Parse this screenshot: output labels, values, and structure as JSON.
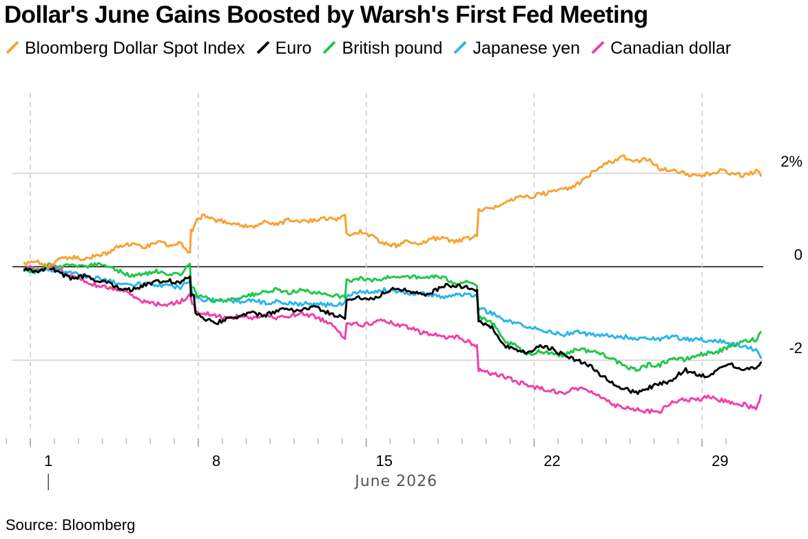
{
  "chart_data": {
    "type": "line",
    "title": "Dollar's June Gains Boosted by Warsh's First Fed Meeting",
    "xlabel": "June 2026",
    "ylabel": "",
    "unit": "%",
    "source": "Source: Bloomberg",
    "ylim": [
      -3.5,
      3.5
    ],
    "yticks": [
      {
        "value": 2,
        "label": "2%"
      },
      {
        "value": 0,
        "label": "0"
      },
      {
        "value": -2,
        "label": "-2"
      }
    ],
    "xlim": [
      -0.5,
      30.8
    ],
    "xticks": [
      {
        "value": 1,
        "label": "1"
      },
      {
        "value": 8,
        "label": "8"
      },
      {
        "value": 15,
        "label": "15"
      },
      {
        "value": 22,
        "label": "22"
      },
      {
        "value": 29,
        "label": "29"
      }
    ],
    "grid": true,
    "legend_position": "top-left",
    "series": [
      {
        "name": "Bloomberg Dollar Spot Index",
        "color": "#F7A232",
        "x": [
          0,
          0.5,
          1,
          1.5,
          2,
          2.5,
          3,
          3.5,
          4,
          4.5,
          5,
          5.5,
          6,
          6.5,
          6.9,
          7,
          7.2,
          7.5,
          8,
          8.5,
          9,
          9.5,
          10,
          10.5,
          11,
          11.5,
          12,
          12.5,
          13,
          13.3,
          13.5,
          14,
          14.5,
          15,
          15.5,
          16,
          16.5,
          17,
          17.5,
          18,
          18.5,
          18.8,
          19,
          19.5,
          20,
          20.5,
          21,
          21.5,
          22,
          22.5,
          23,
          23.5,
          24,
          24.5,
          25,
          25.5,
          26,
          26.5,
          27,
          27.5,
          28,
          28.5,
          29,
          29.5,
          30,
          30.5,
          30.7
        ],
        "y": [
          0.05,
          0.1,
          0.0,
          0.2,
          0.2,
          0.15,
          0.25,
          0.3,
          0.45,
          0.5,
          0.4,
          0.55,
          0.45,
          0.5,
          0.3,
          0.8,
          1.0,
          1.1,
          1.0,
          0.95,
          0.9,
          0.85,
          0.95,
          0.9,
          1.0,
          0.95,
          1.0,
          1.05,
          1.0,
          1.1,
          0.7,
          0.75,
          0.65,
          0.5,
          0.45,
          0.55,
          0.5,
          0.6,
          0.6,
          0.55,
          0.6,
          0.65,
          1.2,
          1.25,
          1.35,
          1.5,
          1.5,
          1.55,
          1.6,
          1.65,
          1.75,
          1.95,
          2.15,
          2.25,
          2.35,
          2.25,
          2.3,
          2.1,
          2.05,
          2.0,
          1.95,
          2.0,
          2.05,
          2.0,
          1.95,
          2.05,
          1.95
        ]
      },
      {
        "name": "Euro",
        "color": "#000000",
        "x": [
          0,
          0.5,
          1,
          1.5,
          2,
          2.5,
          3,
          3.5,
          4,
          4.5,
          5,
          5.5,
          6,
          6.5,
          6.9,
          7,
          7.2,
          7.5,
          8,
          8.5,
          9,
          9.5,
          10,
          10.5,
          11,
          11.5,
          12,
          12.5,
          13,
          13.3,
          13.5,
          14,
          14.5,
          15,
          15.5,
          16,
          16.5,
          17,
          17.5,
          18,
          18.5,
          18.8,
          19,
          19.5,
          20,
          20.5,
          21,
          21.5,
          22,
          22.5,
          23,
          23.5,
          24,
          24.5,
          25,
          25.5,
          26,
          26.5,
          27,
          27.5,
          28,
          28.5,
          29,
          29.5,
          30,
          30.5,
          30.7
        ],
        "y": [
          -0.05,
          -0.1,
          0.0,
          -0.15,
          -0.25,
          -0.2,
          -0.3,
          -0.35,
          -0.45,
          -0.5,
          -0.4,
          -0.3,
          -0.3,
          -0.35,
          -0.2,
          -0.6,
          -1.0,
          -1.1,
          -1.2,
          -1.1,
          -1.05,
          -1.0,
          -1.05,
          -0.95,
          -0.9,
          -0.95,
          -0.85,
          -0.95,
          -1.05,
          -1.1,
          -0.7,
          -0.65,
          -0.7,
          -0.55,
          -0.45,
          -0.5,
          -0.6,
          -0.55,
          -0.4,
          -0.4,
          -0.45,
          -0.5,
          -1.2,
          -1.3,
          -1.7,
          -1.8,
          -1.85,
          -1.7,
          -1.75,
          -1.9,
          -2.0,
          -2.1,
          -2.3,
          -2.5,
          -2.6,
          -2.7,
          -2.6,
          -2.5,
          -2.45,
          -2.2,
          -2.3,
          -2.35,
          -2.15,
          -2.1,
          -2.2,
          -2.15,
          -2.05
        ]
      },
      {
        "name": "British pound",
        "color": "#1FC74A",
        "x": [
          0,
          0.5,
          1,
          1.5,
          2,
          2.5,
          3,
          3.5,
          4,
          4.5,
          5,
          5.5,
          6,
          6.5,
          6.9,
          7,
          7.2,
          7.5,
          8,
          8.5,
          9,
          9.5,
          10,
          10.5,
          11,
          11.5,
          12,
          12.5,
          13,
          13.3,
          13.5,
          14,
          14.5,
          15,
          15.5,
          16,
          16.5,
          17,
          17.5,
          18,
          18.5,
          18.8,
          19,
          19.5,
          20,
          20.5,
          21,
          21.5,
          22,
          22.5,
          23,
          23.5,
          24,
          24.5,
          25,
          25.5,
          26,
          26.5,
          27,
          27.5,
          28,
          28.5,
          29,
          29.5,
          30,
          30.5,
          30.7
        ],
        "y": [
          -0.05,
          -0.1,
          0.05,
          0.0,
          0.05,
          0.0,
          0.05,
          0.0,
          -0.1,
          -0.2,
          -0.15,
          -0.1,
          -0.2,
          -0.15,
          0.05,
          -0.4,
          -0.6,
          -0.65,
          -0.75,
          -0.7,
          -0.65,
          -0.6,
          -0.55,
          -0.5,
          -0.55,
          -0.5,
          -0.55,
          -0.6,
          -0.6,
          -0.65,
          -0.3,
          -0.25,
          -0.3,
          -0.25,
          -0.2,
          -0.2,
          -0.25,
          -0.2,
          -0.25,
          -0.35,
          -0.3,
          -0.4,
          -1.1,
          -1.2,
          -1.6,
          -1.7,
          -1.9,
          -1.8,
          -1.85,
          -1.9,
          -1.75,
          -1.8,
          -1.85,
          -1.95,
          -2.15,
          -2.2,
          -2.1,
          -2.1,
          -1.95,
          -2.0,
          -1.9,
          -1.85,
          -1.8,
          -1.7,
          -1.6,
          -1.55,
          -1.4
        ]
      },
      {
        "name": "Japanese yen",
        "color": "#2BB5EC",
        "x": [
          0,
          0.5,
          1,
          1.5,
          2,
          2.5,
          3,
          3.5,
          4,
          4.5,
          5,
          5.5,
          6,
          6.5,
          6.9,
          7,
          7.2,
          7.5,
          8,
          8.5,
          9,
          9.5,
          10,
          10.5,
          11,
          11.5,
          12,
          12.5,
          13,
          13.3,
          13.5,
          14,
          14.5,
          15,
          15.5,
          16,
          16.5,
          17,
          17.5,
          18,
          18.5,
          18.8,
          19,
          19.5,
          20,
          20.5,
          21,
          21.5,
          22,
          22.5,
          23,
          23.5,
          24,
          24.5,
          25,
          25.5,
          26,
          26.5,
          27,
          27.5,
          28,
          28.5,
          29,
          29.5,
          30,
          30.5,
          30.7
        ],
        "y": [
          -0.05,
          -0.1,
          -0.05,
          -0.1,
          -0.15,
          -0.2,
          -0.25,
          -0.3,
          -0.35,
          -0.4,
          -0.35,
          -0.4,
          -0.4,
          -0.45,
          -0.3,
          -0.6,
          -0.65,
          -0.7,
          -0.7,
          -0.72,
          -0.75,
          -0.7,
          -0.78,
          -0.75,
          -0.78,
          -0.8,
          -0.78,
          -0.82,
          -0.8,
          -0.8,
          -0.6,
          -0.55,
          -0.55,
          -0.5,
          -0.52,
          -0.55,
          -0.58,
          -0.6,
          -0.65,
          -0.6,
          -0.6,
          -0.6,
          -0.9,
          -1.0,
          -1.15,
          -1.2,
          -1.3,
          -1.35,
          -1.4,
          -1.45,
          -1.4,
          -1.45,
          -1.45,
          -1.5,
          -1.5,
          -1.52,
          -1.55,
          -1.55,
          -1.5,
          -1.55,
          -1.55,
          -1.58,
          -1.6,
          -1.65,
          -1.7,
          -1.8,
          -1.95
        ]
      },
      {
        "name": "Canadian dollar",
        "color": "#F23FA8",
        "x": [
          0,
          0.5,
          1,
          1.5,
          2,
          2.5,
          3,
          3.5,
          4,
          4.5,
          5,
          5.5,
          6,
          6.5,
          6.9,
          7,
          7.2,
          7.5,
          8,
          8.5,
          9,
          9.5,
          10,
          10.5,
          11,
          11.5,
          12,
          12.5,
          13,
          13.3,
          13.5,
          14,
          14.5,
          15,
          15.5,
          16,
          16.5,
          17,
          17.5,
          18,
          18.5,
          18.8,
          19,
          19.5,
          20,
          20.5,
          21,
          21.5,
          22,
          22.5,
          23,
          23.5,
          24,
          24.5,
          25,
          25.5,
          26,
          26.5,
          27,
          27.5,
          28,
          28.5,
          29,
          29.5,
          30,
          30.5,
          30.7
        ],
        "y": [
          0.0,
          -0.05,
          0.0,
          -0.1,
          -0.2,
          -0.3,
          -0.4,
          -0.45,
          -0.5,
          -0.6,
          -0.75,
          -0.8,
          -0.8,
          -0.75,
          -0.6,
          -0.8,
          -0.95,
          -1.0,
          -1.05,
          -1.1,
          -1.05,
          -1.1,
          -1.05,
          -1.1,
          -1.05,
          -1.0,
          -1.05,
          -1.15,
          -1.3,
          -1.5,
          -1.2,
          -1.25,
          -1.2,
          -1.15,
          -1.25,
          -1.3,
          -1.4,
          -1.45,
          -1.5,
          -1.5,
          -1.6,
          -1.7,
          -2.2,
          -2.3,
          -2.35,
          -2.45,
          -2.55,
          -2.6,
          -2.65,
          -2.7,
          -2.6,
          -2.65,
          -2.75,
          -2.95,
          -3.0,
          -3.05,
          -3.1,
          -3.1,
          -2.9,
          -2.85,
          -2.85,
          -2.8,
          -2.85,
          -2.9,
          -2.95,
          -3.05,
          -2.75
        ]
      }
    ]
  }
}
